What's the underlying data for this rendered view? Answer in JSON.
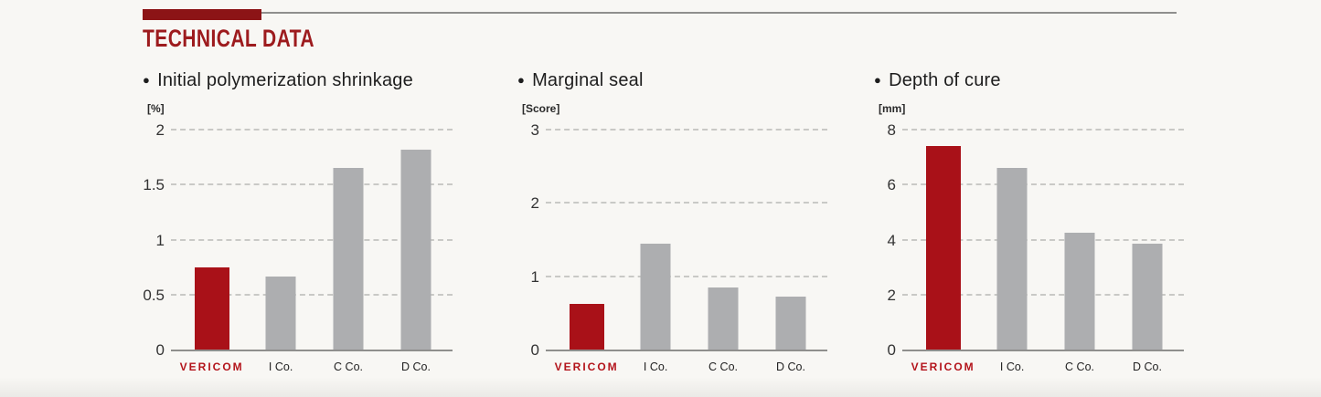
{
  "theme": {
    "background": "#f8f7f4",
    "accent_bar": "#8c1416",
    "accent_title": "#9d1b1e",
    "highlight_bar": "#a91118",
    "bar_gray": "#adaeb0",
    "brand_red": "#b3141b"
  },
  "ui": {
    "bullet": "●"
  },
  "header": {
    "title": "TECHNICAL DATA"
  },
  "brand": {
    "name": "VERICOM"
  },
  "chart_data": [
    {
      "type": "bar",
      "title": "Initial polymerization shrinkage",
      "ylabel": "[%]",
      "xlabel": "",
      "categories": [
        "VERICOM",
        "I Co.",
        "C Co.",
        "D Co."
      ],
      "values": [
        0.75,
        0.66,
        1.65,
        1.82
      ],
      "ylim": [
        0,
        2
      ],
      "yticks": [
        0,
        0.5,
        1,
        1.5,
        2
      ],
      "grid": "horizontal-dashed",
      "legend": "none",
      "highlight_index": 0
    },
    {
      "type": "bar",
      "title": "Marginal seal",
      "ylabel": "[Score]",
      "xlabel": "",
      "categories": [
        "VERICOM",
        "I Co.",
        "C Co.",
        "D Co."
      ],
      "values": [
        0.62,
        1.45,
        0.85,
        0.72
      ],
      "ylim": [
        0,
        3
      ],
      "yticks": [
        0,
        1,
        2,
        3
      ],
      "grid": "horizontal-dashed",
      "legend": "none",
      "highlight_index": 0
    },
    {
      "type": "bar",
      "title": "Depth of cure",
      "ylabel": "[mm]",
      "xlabel": "",
      "categories": [
        "VERICOM",
        "I Co.",
        "C Co.",
        "D Co."
      ],
      "values": [
        7.4,
        6.6,
        4.25,
        3.85
      ],
      "ylim": [
        0,
        8
      ],
      "yticks": [
        0,
        2,
        4,
        6,
        8
      ],
      "grid": "horizontal-dashed",
      "legend": "none",
      "highlight_index": 0
    }
  ]
}
